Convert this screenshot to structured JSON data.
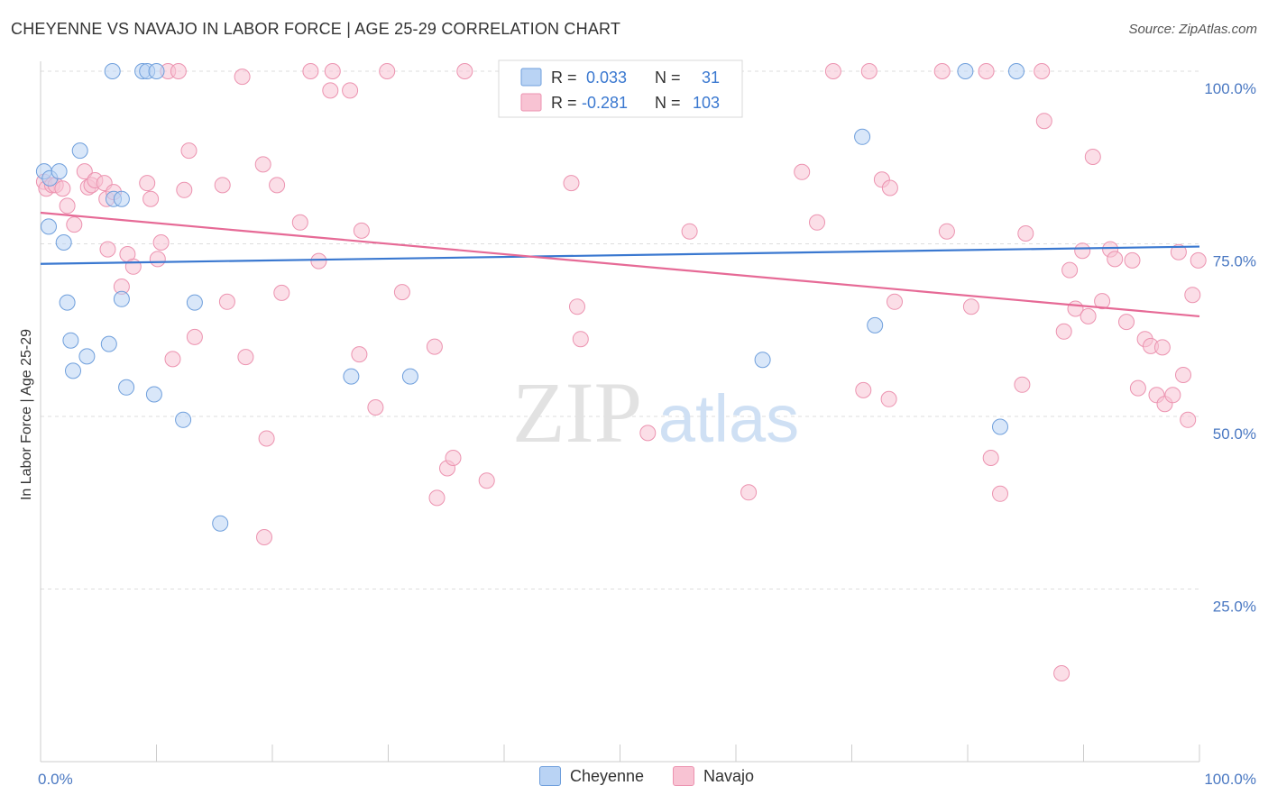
{
  "header": {
    "title": "CHEYENNE VS NAVAJO IN LABOR FORCE | AGE 25-29 CORRELATION CHART",
    "source": "Source: ZipAtlas.com"
  },
  "watermark": {
    "zip": "ZIP",
    "atlas": "atlas"
  },
  "colors": {
    "cheyenne_fill": "#b9d3f4",
    "cheyenne_stroke": "#6f9fdc",
    "cheyenne_line": "#3a78d0",
    "navajo_fill": "#f8c3d3",
    "navajo_stroke": "#ec93b0",
    "navajo_line": "#e66a96",
    "value_text": "#3a78d0",
    "grid": "#dddddd"
  },
  "legend": {
    "rows": [
      {
        "r_label": "R =",
        "r_value": "0.033",
        "n_label": "N =",
        "n_value": "31"
      },
      {
        "r_label": "R =",
        "r_value": "-0.281",
        "n_label": "N =",
        "n_value": "103"
      }
    ],
    "items": [
      "Cheyenne",
      "Navajo"
    ]
  },
  "chart_data": {
    "type": "scatter",
    "title": "CHEYENNE VS NAVAJO IN LABOR FORCE | AGE 25-29 CORRELATION CHART",
    "xlabel": "",
    "ylabel": "In Labor Force | Age 25-29",
    "xlim": [
      0,
      100
    ],
    "ylim": [
      0,
      100
    ],
    "x_tick_labels": [
      "0.0%",
      "100.0%"
    ],
    "y_tick_labels": [
      "25.0%",
      "50.0%",
      "75.0%",
      "100.0%"
    ],
    "y_ticks": [
      25,
      50,
      75,
      100
    ],
    "grid": true,
    "legend_placement": "top-center",
    "series": [
      {
        "name": "Cheyenne",
        "R": 0.033,
        "N": 31,
        "trend": {
          "x": [
            0,
            100
          ],
          "y": [
            72.1,
            74.6
          ]
        },
        "points": [
          [
            0.3,
            85.5
          ],
          [
            0.8,
            84.5
          ],
          [
            1.6,
            85.5
          ],
          [
            0.7,
            77.5
          ],
          [
            2.0,
            75.2
          ],
          [
            3.4,
            88.5
          ],
          [
            6.3,
            81.5
          ],
          [
            7.0,
            81.5
          ],
          [
            6.2,
            100
          ],
          [
            8.8,
            100
          ],
          [
            9.2,
            100
          ],
          [
            10.0,
            100
          ],
          [
            2.3,
            66.5
          ],
          [
            7.0,
            67.0
          ],
          [
            13.3,
            66.5
          ],
          [
            2.6,
            61.0
          ],
          [
            4.0,
            58.7
          ],
          [
            5.9,
            60.5
          ],
          [
            2.8,
            56.6
          ],
          [
            7.4,
            54.2
          ],
          [
            9.8,
            53.2
          ],
          [
            12.3,
            49.5
          ],
          [
            15.5,
            34.5
          ],
          [
            26.8,
            55.8
          ],
          [
            31.9,
            55.8
          ],
          [
            62.3,
            58.2
          ],
          [
            70.9,
            90.5
          ],
          [
            72.0,
            63.2
          ],
          [
            79.8,
            100
          ],
          [
            84.2,
            100
          ],
          [
            82.8,
            48.5
          ]
        ]
      },
      {
        "name": "Navajo",
        "R": -0.281,
        "N": 103,
        "trend": {
          "x": [
            0,
            100
          ],
          "y": [
            79.5,
            64.5
          ]
        },
        "points": [
          [
            0.3,
            84.0
          ],
          [
            0.5,
            83.0
          ],
          [
            1.0,
            83.5
          ],
          [
            1.3,
            83.5
          ],
          [
            1.9,
            83.0
          ],
          [
            2.3,
            80.5
          ],
          [
            2.9,
            77.8
          ],
          [
            3.8,
            85.5
          ],
          [
            4.1,
            83.2
          ],
          [
            4.4,
            83.5
          ],
          [
            4.7,
            84.2
          ],
          [
            5.5,
            83.8
          ],
          [
            5.7,
            81.5
          ],
          [
            6.3,
            82.5
          ],
          [
            5.8,
            74.2
          ],
          [
            7.5,
            73.5
          ],
          [
            8.0,
            71.7
          ],
          [
            9.2,
            83.8
          ],
          [
            9.5,
            81.5
          ],
          [
            10.1,
            72.8
          ],
          [
            10.4,
            75.2
          ],
          [
            11.0,
            100
          ],
          [
            11.9,
            100
          ],
          [
            12.4,
            82.8
          ],
          [
            12.8,
            88.5
          ],
          [
            13.3,
            61.5
          ],
          [
            11.4,
            58.3
          ],
          [
            7.0,
            68.8
          ],
          [
            15.7,
            83.5
          ],
          [
            16.1,
            66.6
          ],
          [
            17.4,
            99.2
          ],
          [
            17.7,
            58.6
          ],
          [
            19.2,
            86.5
          ],
          [
            19.5,
            46.8
          ],
          [
            19.3,
            32.5
          ],
          [
            20.4,
            83.5
          ],
          [
            20.8,
            67.9
          ],
          [
            22.4,
            78.1
          ],
          [
            23.3,
            100
          ],
          [
            24.0,
            72.5
          ],
          [
            25.0,
            97.2
          ],
          [
            25.2,
            100
          ],
          [
            26.7,
            97.2
          ],
          [
            27.5,
            59.0
          ],
          [
            27.7,
            76.9
          ],
          [
            28.9,
            51.3
          ],
          [
            29.9,
            100
          ],
          [
            31.2,
            68.0
          ],
          [
            34.0,
            60.1
          ],
          [
            35.1,
            42.5
          ],
          [
            35.6,
            44.0
          ],
          [
            34.2,
            38.2
          ],
          [
            36.6,
            100
          ],
          [
            38.5,
            40.7
          ],
          [
            40.6,
            100
          ],
          [
            45.8,
            83.8
          ],
          [
            46.3,
            65.9
          ],
          [
            46.6,
            61.2
          ],
          [
            52.4,
            47.6
          ],
          [
            56.0,
            76.8
          ],
          [
            59.5,
            100
          ],
          [
            61.1,
            39.0
          ],
          [
            65.7,
            85.4
          ],
          [
            67.0,
            78.1
          ],
          [
            68.4,
            100
          ],
          [
            71.0,
            53.8
          ],
          [
            71.5,
            100
          ],
          [
            72.6,
            84.3
          ],
          [
            73.3,
            83.1
          ],
          [
            73.7,
            66.6
          ],
          [
            73.2,
            52.5
          ],
          [
            77.8,
            100
          ],
          [
            78.2,
            76.8
          ],
          [
            80.3,
            65.9
          ],
          [
            81.6,
            100
          ],
          [
            82.0,
            44.0
          ],
          [
            82.8,
            38.8
          ],
          [
            84.7,
            54.6
          ],
          [
            85.0,
            76.5
          ],
          [
            86.4,
            100
          ],
          [
            86.6,
            92.8
          ],
          [
            88.1,
            12.8
          ],
          [
            88.3,
            62.3
          ],
          [
            88.8,
            71.2
          ],
          [
            89.3,
            65.6
          ],
          [
            89.9,
            74.0
          ],
          [
            90.4,
            64.5
          ],
          [
            90.8,
            87.6
          ],
          [
            91.6,
            66.7
          ],
          [
            92.3,
            74.2
          ],
          [
            92.7,
            72.8
          ],
          [
            93.7,
            63.7
          ],
          [
            94.2,
            72.6
          ],
          [
            94.7,
            54.1
          ],
          [
            95.3,
            61.2
          ],
          [
            95.8,
            60.2
          ],
          [
            96.3,
            53.1
          ],
          [
            96.8,
            60.0
          ],
          [
            97.0,
            51.8
          ],
          [
            97.7,
            53.1
          ],
          [
            98.2,
            73.8
          ],
          [
            98.6,
            56.0
          ],
          [
            99.0,
            49.5
          ],
          [
            99.4,
            67.6
          ],
          [
            99.9,
            72.6
          ]
        ]
      }
    ]
  }
}
